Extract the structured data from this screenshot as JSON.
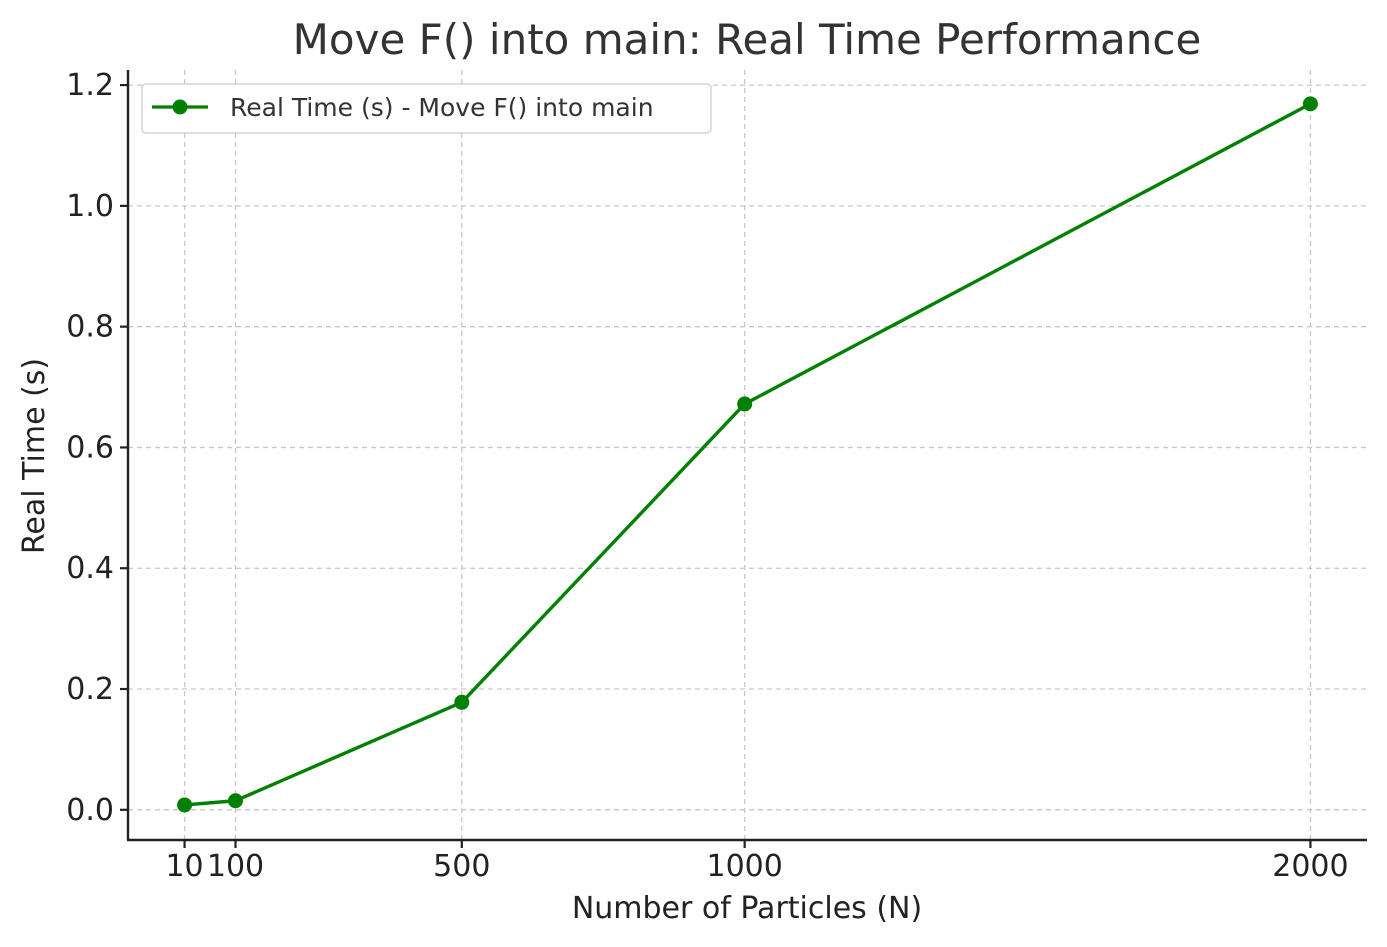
{
  "chart_data": {
    "type": "line",
    "title": "Move F() into main: Real Time Performance",
    "xlabel": "Number of Particles (N)",
    "ylabel": "Real Time (s)",
    "x": [
      10,
      100,
      500,
      1000,
      2000
    ],
    "x_tick_labels": [
      "10",
      "100",
      "500",
      "1000",
      "2000"
    ],
    "xlim": [
      -90,
      2100
    ],
    "ylim": [
      -0.05,
      1.225
    ],
    "y_ticks": [
      0.0,
      0.2,
      0.4,
      0.6,
      0.8,
      1.0,
      1.2
    ],
    "y_tick_labels": [
      "0.0",
      "0.2",
      "0.4",
      "0.6",
      "0.8",
      "1.0",
      "1.2"
    ],
    "grid": true,
    "legend_position": "top-left",
    "series": [
      {
        "name": "Real Time (s) - Move F() into main",
        "color": "#008000",
        "marker": "circle",
        "values": [
          0.008,
          0.015,
          0.178,
          0.672,
          1.169
        ]
      }
    ]
  }
}
